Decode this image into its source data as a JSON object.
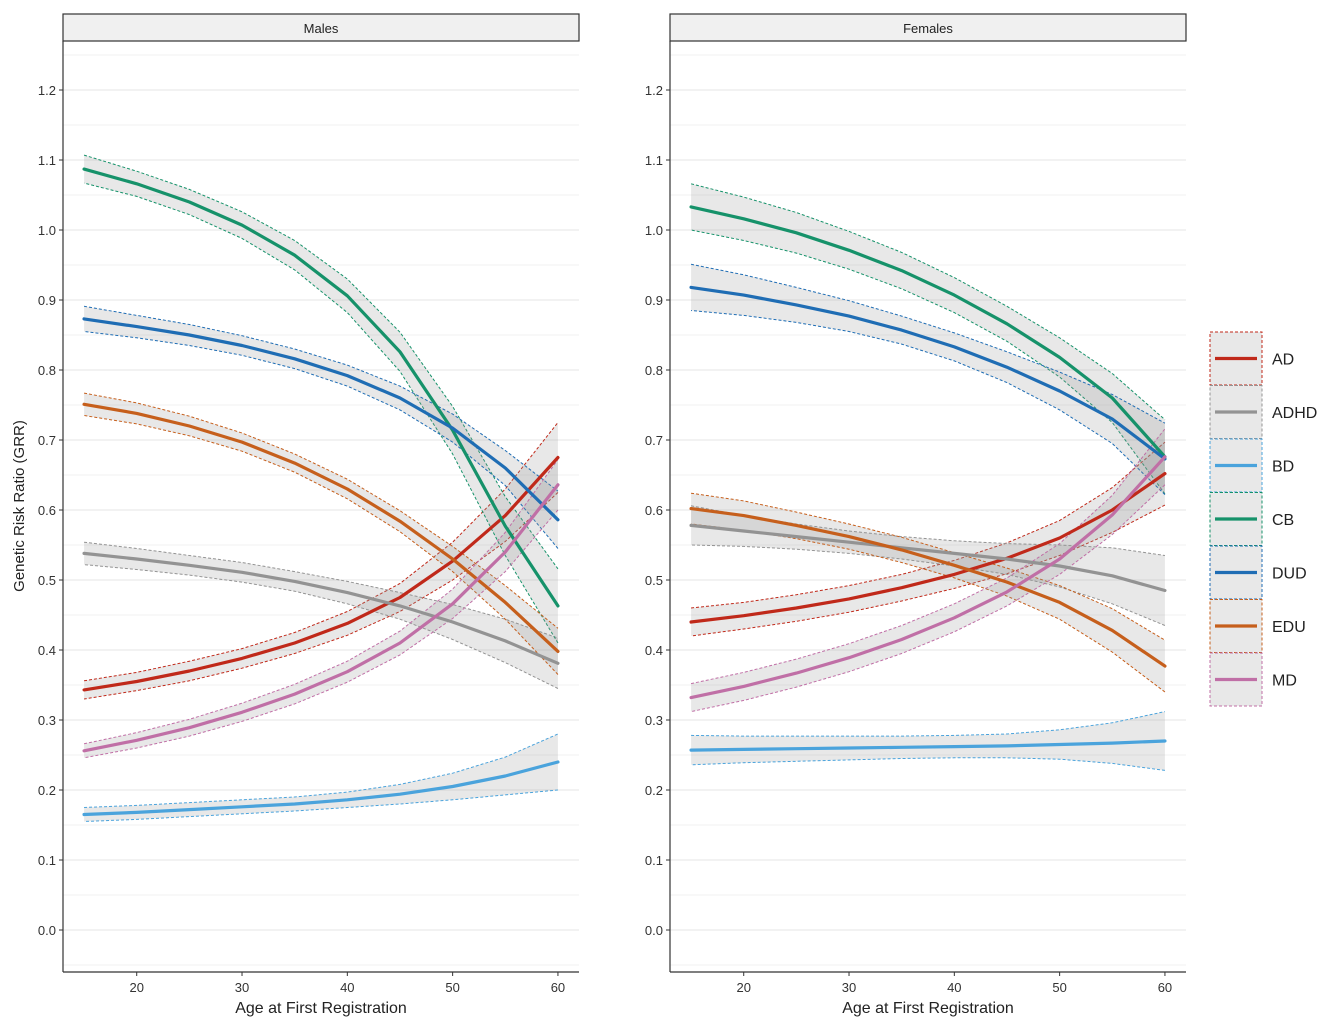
{
  "chart_data": {
    "type": "line",
    "ylabel": "Genetic Risk Ratio (GRR)",
    "xlabel": "Age at First Registration",
    "xlim": [
      13,
      62
    ],
    "ylim": [
      -0.06,
      1.27
    ],
    "x_ticks": [
      20,
      30,
      40,
      50,
      60
    ],
    "y_ticks": [
      0.0,
      0.1,
      0.2,
      0.3,
      0.4,
      0.5,
      0.6,
      0.7,
      0.8,
      0.9,
      1.0,
      1.1,
      1.2
    ],
    "y_tick_labels": [
      "0.0",
      "0.1",
      "0.2",
      "0.3",
      "0.4",
      "0.5",
      "0.6",
      "0.7",
      "0.8",
      "0.9",
      "1.0",
      "1.1",
      "1.2"
    ],
    "grid": "horizontal major and minor",
    "legend_position": "right",
    "x": [
      15,
      20,
      25,
      30,
      35,
      40,
      45,
      50,
      55,
      60
    ],
    "legend": [
      {
        "name": "AD",
        "color": "#c0291a"
      },
      {
        "name": "ADHD",
        "color": "#939393"
      },
      {
        "name": "BD",
        "color": "#4aa3dc"
      },
      {
        "name": "CB",
        "color": "#16926a"
      },
      {
        "name": "DUD",
        "color": "#1f6db4"
      },
      {
        "name": "EDU",
        "color": "#c65f1c"
      },
      {
        "name": "MD",
        "color": "#c06fa6"
      }
    ],
    "panels": [
      {
        "title": "Males",
        "series": [
          {
            "name": "AD",
            "color": "#c0291a",
            "y": [
              0.343,
              0.355,
              0.37,
              0.388,
              0.41,
              0.438,
              0.475,
              0.527,
              0.592,
              0.675
            ],
            "lower": [
              0.33,
              0.342,
              0.356,
              0.374,
              0.395,
              0.421,
              0.455,
              0.5,
              0.555,
              0.625
            ],
            "upper": [
              0.356,
              0.368,
              0.384,
              0.402,
              0.425,
              0.455,
              0.495,
              0.554,
              0.63,
              0.725
            ]
          },
          {
            "name": "ADHD",
            "color": "#939393",
            "y": [
              0.538,
              0.53,
              0.521,
              0.511,
              0.498,
              0.482,
              0.463,
              0.44,
              0.413,
              0.381
            ],
            "lower": [
              0.522,
              0.515,
              0.507,
              0.497,
              0.484,
              0.466,
              0.444,
              0.415,
              0.382,
              0.345
            ],
            "upper": [
              0.554,
              0.545,
              0.535,
              0.525,
              0.512,
              0.498,
              0.482,
              0.465,
              0.444,
              0.417
            ]
          },
          {
            "name": "BD",
            "color": "#4aa3dc",
            "y": [
              0.165,
              0.168,
              0.172,
              0.176,
              0.18,
              0.186,
              0.194,
              0.205,
              0.22,
              0.24
            ],
            "lower": [
              0.155,
              0.158,
              0.162,
              0.166,
              0.17,
              0.175,
              0.18,
              0.186,
              0.193,
              0.2
            ],
            "upper": [
              0.175,
              0.178,
              0.182,
              0.186,
              0.19,
              0.197,
              0.208,
              0.224,
              0.247,
              0.28
            ]
          },
          {
            "name": "CB",
            "color": "#16926a",
            "y": [
              1.087,
              1.066,
              1.04,
              1.007,
              0.964,
              0.906,
              0.826,
              0.714,
              0.577,
              0.463
            ],
            "lower": [
              1.067,
              1.048,
              1.022,
              0.988,
              0.943,
              0.882,
              0.798,
              0.68,
              0.535,
              0.41
            ],
            "upper": [
              1.107,
              1.084,
              1.058,
              1.026,
              0.985,
              0.93,
              0.854,
              0.748,
              0.619,
              0.516
            ]
          },
          {
            "name": "DUD",
            "color": "#1f6db4",
            "y": [
              0.873,
              0.862,
              0.85,
              0.835,
              0.816,
              0.792,
              0.76,
              0.717,
              0.66,
              0.586
            ],
            "lower": [
              0.855,
              0.846,
              0.835,
              0.821,
              0.802,
              0.777,
              0.743,
              0.697,
              0.635,
              0.545
            ],
            "upper": [
              0.891,
              0.878,
              0.865,
              0.849,
              0.83,
              0.807,
              0.777,
              0.737,
              0.685,
              0.627
            ]
          },
          {
            "name": "EDU",
            "color": "#c65f1c",
            "y": [
              0.751,
              0.738,
              0.72,
              0.697,
              0.667,
              0.63,
              0.584,
              0.53,
              0.468,
              0.398
            ],
            "lower": [
              0.735,
              0.723,
              0.706,
              0.684,
              0.654,
              0.616,
              0.569,
              0.512,
              0.444,
              0.365
            ],
            "upper": [
              0.767,
              0.753,
              0.734,
              0.71,
              0.68,
              0.644,
              0.599,
              0.548,
              0.492,
              0.431
            ]
          },
          {
            "name": "MD",
            "color": "#c06fa6",
            "y": [
              0.256,
              0.271,
              0.289,
              0.311,
              0.337,
              0.369,
              0.41,
              0.466,
              0.54,
              0.636
            ],
            "lower": [
              0.246,
              0.26,
              0.277,
              0.298,
              0.323,
              0.354,
              0.393,
              0.445,
              0.512,
              0.6
            ],
            "upper": [
              0.266,
              0.282,
              0.301,
              0.324,
              0.351,
              0.384,
              0.427,
              0.487,
              0.568,
              0.672
            ]
          }
        ]
      },
      {
        "title": "Females",
        "series": [
          {
            "name": "AD",
            "color": "#c0291a",
            "y": [
              0.44,
              0.449,
              0.46,
              0.473,
              0.489,
              0.508,
              0.531,
              0.56,
              0.6,
              0.652
            ],
            "lower": [
              0.42,
              0.43,
              0.441,
              0.454,
              0.47,
              0.488,
              0.509,
              0.535,
              0.568,
              0.607
            ],
            "upper": [
              0.46,
              0.468,
              0.479,
              0.492,
              0.508,
              0.528,
              0.553,
              0.585,
              0.632,
              0.697
            ]
          },
          {
            "name": "ADHD",
            "color": "#939393",
            "y": [
              0.578,
              0.57,
              0.562,
              0.554,
              0.546,
              0.538,
              0.53,
              0.52,
              0.506,
              0.485
            ],
            "lower": [
              0.55,
              0.548,
              0.544,
              0.538,
              0.53,
              0.52,
              0.508,
              0.49,
              0.466,
              0.435
            ],
            "upper": [
              0.606,
              0.592,
              0.58,
              0.57,
              0.562,
              0.556,
              0.552,
              0.55,
              0.546,
              0.535
            ]
          },
          {
            "name": "BD",
            "color": "#4aa3dc",
            "y": [
              0.257,
              0.258,
              0.259,
              0.26,
              0.261,
              0.262,
              0.263,
              0.265,
              0.267,
              0.27
            ],
            "lower": [
              0.236,
              0.239,
              0.241,
              0.243,
              0.245,
              0.246,
              0.246,
              0.244,
              0.238,
              0.228
            ],
            "upper": [
              0.278,
              0.277,
              0.277,
              0.277,
              0.277,
              0.278,
              0.28,
              0.286,
              0.296,
              0.312
            ]
          },
          {
            "name": "CB",
            "color": "#16926a",
            "y": [
              1.033,
              1.016,
              0.996,
              0.971,
              0.942,
              0.907,
              0.866,
              0.818,
              0.76,
              0.676
            ],
            "lower": [
              1.0,
              0.985,
              0.967,
              0.944,
              0.916,
              0.882,
              0.841,
              0.79,
              0.725,
              0.623
            ],
            "upper": [
              1.066,
              1.047,
              1.025,
              0.998,
              0.968,
              0.932,
              0.891,
              0.846,
              0.795,
              0.729
            ]
          },
          {
            "name": "DUD",
            "color": "#1f6db4",
            "y": [
              0.918,
              0.907,
              0.893,
              0.877,
              0.857,
              0.833,
              0.804,
              0.77,
              0.73,
              0.673
            ],
            "lower": [
              0.885,
              0.878,
              0.868,
              0.855,
              0.837,
              0.813,
              0.782,
              0.743,
              0.695,
              0.622
            ],
            "upper": [
              0.951,
              0.936,
              0.918,
              0.899,
              0.877,
              0.853,
              0.826,
              0.797,
              0.765,
              0.724
            ]
          },
          {
            "name": "EDU",
            "color": "#c65f1c",
            "y": [
              0.602,
              0.592,
              0.578,
              0.562,
              0.543,
              0.521,
              0.497,
              0.468,
              0.428,
              0.377
            ],
            "lower": [
              0.58,
              0.571,
              0.559,
              0.544,
              0.525,
              0.503,
              0.477,
              0.444,
              0.397,
              0.34
            ],
            "upper": [
              0.624,
              0.613,
              0.597,
              0.58,
              0.561,
              0.539,
              0.517,
              0.492,
              0.459,
              0.414
            ]
          },
          {
            "name": "MD",
            "color": "#c06fa6",
            "y": [
              0.332,
              0.348,
              0.367,
              0.389,
              0.415,
              0.446,
              0.483,
              0.53,
              0.593,
              0.676
            ],
            "lower": [
              0.312,
              0.328,
              0.347,
              0.369,
              0.395,
              0.426,
              0.463,
              0.508,
              0.565,
              0.636
            ],
            "upper": [
              0.352,
              0.368,
              0.387,
              0.409,
              0.435,
              0.466,
              0.503,
              0.552,
              0.621,
              0.716
            ]
          }
        ]
      }
    ]
  }
}
